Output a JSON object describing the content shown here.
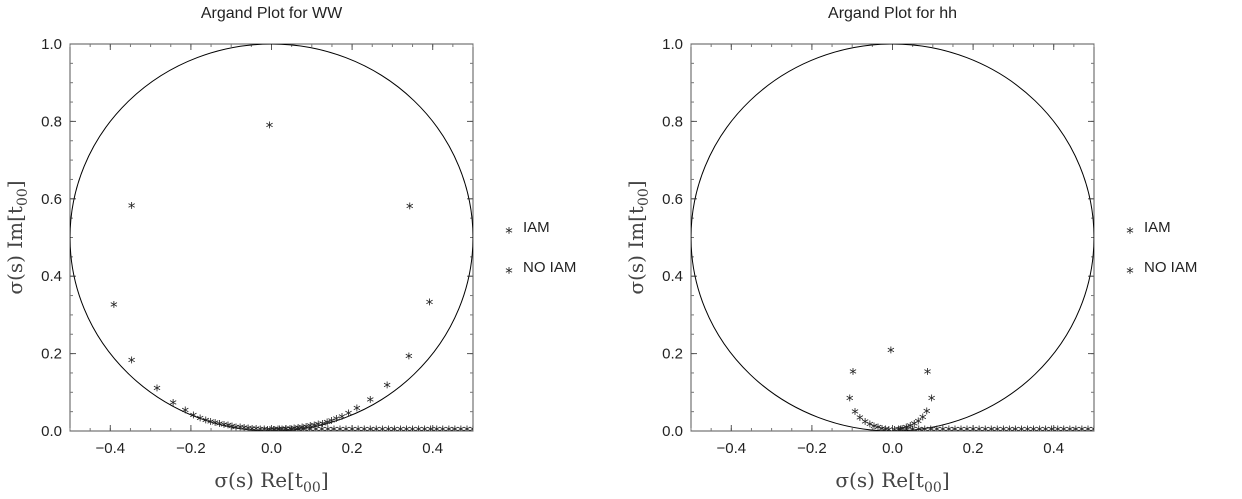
{
  "chart_data": [
    {
      "type": "scatter",
      "title": "Argand Plot for WW",
      "xlabel_parts": [
        "σ(s) Re[t",
        "00",
        "]"
      ],
      "ylabel_parts": [
        "σ(s) Im[t",
        "00",
        "]"
      ],
      "xlim": [
        -0.5,
        0.5
      ],
      "ylim": [
        0.0,
        1.0
      ],
      "x_ticks": [
        -0.4,
        -0.2,
        0.0,
        0.2,
        0.4
      ],
      "x_tick_labels": [
        "−0.4",
        "−0.2",
        "0.0",
        "0.2",
        "0.4"
      ],
      "y_ticks": [
        0.0,
        0.2,
        0.4,
        0.6,
        0.8,
        1.0
      ],
      "y_tick_labels": [
        "0.0",
        "0.2",
        "0.4",
        "0.6",
        "0.8",
        "1.0"
      ],
      "reference_circle": {
        "center": [
          0.0,
          0.5
        ],
        "radius": 0.5
      },
      "legend_position": "right",
      "series": [
        {
          "name": "IAM",
          "color": "#e00000",
          "x": [
            -0.005,
            -0.347,
            0.343,
            -0.391,
            0.392,
            -0.347,
            0.341,
            -0.284,
            0.287,
            -0.244,
            0.245,
            -0.214,
            0.212,
            -0.194,
            0.191,
            -0.177,
            0.175,
            -0.163,
            0.161,
            -0.151,
            0.149,
            -0.14,
            0.138,
            -0.129,
            0.127,
            -0.118,
            0.116,
            -0.108,
            0.106,
            -0.098,
            0.096,
            -0.088,
            0.086,
            -0.078,
            0.076,
            -0.068,
            0.066,
            -0.058,
            0.056,
            -0.048,
            0.046,
            -0.038,
            0.036,
            -0.028,
            0.026,
            -0.018,
            0.016,
            -0.01,
            0.008,
            -0.004
          ],
          "y": [
            0.787,
            0.579,
            0.578,
            0.323,
            0.33,
            0.18,
            0.19,
            0.107,
            0.115,
            0.07,
            0.077,
            0.05,
            0.056,
            0.038,
            0.043,
            0.03,
            0.034,
            0.025,
            0.028,
            0.021,
            0.023,
            0.018,
            0.019,
            0.015,
            0.016,
            0.013,
            0.014,
            0.011,
            0.012,
            0.009,
            0.01,
            0.007,
            0.008,
            0.006,
            0.0065,
            0.005,
            0.005,
            0.004,
            0.004,
            0.003,
            0.003,
            0.002,
            0.002,
            0.0015,
            0.0015,
            0.001,
            0.001,
            0.0005,
            0.0005,
            0.0003
          ]
        },
        {
          "name": "NO IAM",
          "color": "#0000d0",
          "x": [
            0.005,
            0.02,
            0.035,
            0.05,
            0.065,
            0.08,
            0.095,
            0.11,
            0.125,
            0.14,
            0.155,
            0.17,
            0.185,
            0.2,
            0.215,
            0.23,
            0.245,
            0.26,
            0.275,
            0.29,
            0.305,
            0.32,
            0.335,
            0.35,
            0.365,
            0.38,
            0.395,
            0.41,
            0.425,
            0.44,
            0.455,
            0.47,
            0.485,
            0.5
          ],
          "y": [
            0.0005,
            0.001,
            0.001,
            0.001,
            0.001,
            0.001,
            0.001,
            0.001,
            0.001,
            0.001,
            0.001,
            0.001,
            0.001,
            0.001,
            0.001,
            0.001,
            0.001,
            0.001,
            0.001,
            0.001,
            0.001,
            0.001,
            0.001,
            0.001,
            0.001,
            0.001,
            0.001,
            0.001,
            0.001,
            0.001,
            0.001,
            0.001,
            0.001,
            0.001
          ]
        }
      ]
    },
    {
      "type": "scatter",
      "title": "Argand Plot for hh",
      "xlabel_parts": [
        "σ(s) Re[t",
        "00",
        "]"
      ],
      "ylabel_parts": [
        "σ(s) Im[t",
        "00",
        "]"
      ],
      "xlim": [
        -0.5,
        0.5
      ],
      "ylim": [
        0.0,
        1.0
      ],
      "x_ticks": [
        -0.4,
        -0.2,
        0.0,
        0.2,
        0.4
      ],
      "x_tick_labels": [
        "−0.4",
        "−0.2",
        "0.0",
        "0.2",
        "0.4"
      ],
      "y_ticks": [
        0.0,
        0.2,
        0.4,
        0.6,
        0.8,
        1.0
      ],
      "y_tick_labels": [
        "0.0",
        "0.2",
        "0.4",
        "0.6",
        "0.8",
        "1.0"
      ],
      "reference_circle": {
        "center": [
          0.0,
          0.5
        ],
        "radius": 0.5
      },
      "legend_position": "right",
      "series": [
        {
          "name": "IAM",
          "color": "#e00000",
          "x": [
            -0.004,
            -0.098,
            0.087,
            -0.106,
            0.097,
            -0.093,
            0.085,
            -0.081,
            0.075,
            -0.068,
            0.064,
            -0.056,
            0.054,
            -0.046,
            0.044,
            -0.036,
            0.034,
            -0.026,
            0.024,
            -0.017,
            0.015,
            -0.009
          ],
          "y": [
            0.206,
            0.15,
            0.15,
            0.081,
            0.082,
            0.047,
            0.048,
            0.031,
            0.032,
            0.021,
            0.022,
            0.014,
            0.015,
            0.009,
            0.01,
            0.006,
            0.006,
            0.003,
            0.003,
            0.0015,
            0.0015,
            0.0005
          ]
        },
        {
          "name": "NO IAM",
          "color": "#0000d0",
          "x": [
            0.005,
            0.02,
            0.035,
            0.05,
            0.065,
            0.08,
            0.095,
            0.11,
            0.125,
            0.14,
            0.155,
            0.17,
            0.185,
            0.2,
            0.215,
            0.23,
            0.245,
            0.26,
            0.275,
            0.29,
            0.305,
            0.32,
            0.335,
            0.35,
            0.365,
            0.38,
            0.395,
            0.41,
            0.425,
            0.44,
            0.455,
            0.47,
            0.485,
            0.5
          ],
          "y": [
            0.0005,
            0.001,
            0.001,
            0.001,
            0.001,
            0.001,
            0.001,
            0.001,
            0.001,
            0.001,
            0.001,
            0.001,
            0.001,
            0.001,
            0.001,
            0.001,
            0.001,
            0.001,
            0.001,
            0.001,
            0.001,
            0.001,
            0.001,
            0.001,
            0.001,
            0.001,
            0.001,
            0.001,
            0.001,
            0.001,
            0.001,
            0.001,
            0.001,
            0.001
          ]
        }
      ]
    }
  ]
}
